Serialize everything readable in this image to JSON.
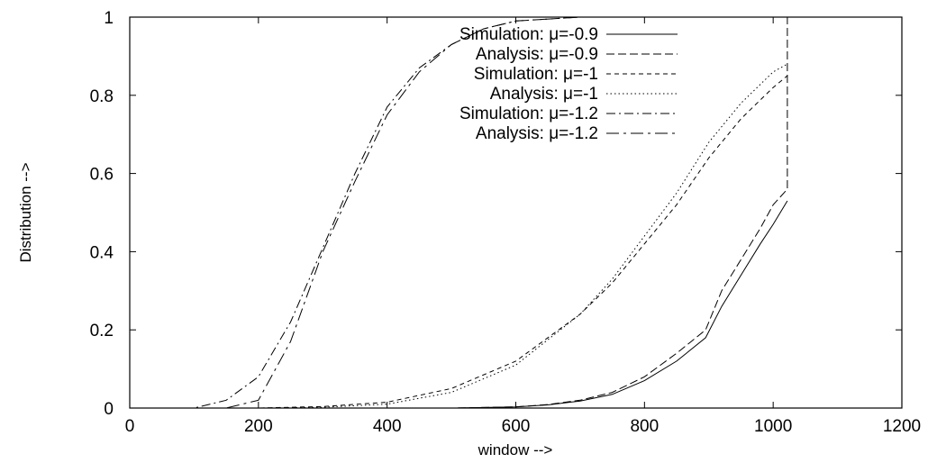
{
  "chart_data": {
    "type": "line",
    "xlabel": "window -->",
    "ylabel": "Distribution -->",
    "xlim": [
      0,
      1200
    ],
    "ylim": [
      0,
      1
    ],
    "xticks": [
      0,
      200,
      400,
      600,
      800,
      1000,
      1200
    ],
    "yticks": [
      0,
      0.2,
      0.4,
      0.6,
      0.8,
      1
    ],
    "grid": false,
    "legend_position": "top-center",
    "series": [
      {
        "name": "Simulation: μ=-0.9",
        "dash": "solid",
        "x": [
          0,
          500,
          600,
          650,
          700,
          750,
          800,
          850,
          895,
          920,
          950,
          980,
          1000,
          1022
        ],
        "y": [
          0,
          0,
          0.003,
          0.008,
          0.018,
          0.035,
          0.07,
          0.12,
          0.18,
          0.26,
          0.34,
          0.42,
          0.47,
          0.53
        ]
      },
      {
        "name": "Analysis: μ=-0.9",
        "dash": "long-dash",
        "x": [
          0,
          500,
          600,
          650,
          700,
          750,
          800,
          850,
          895,
          920,
          950,
          980,
          1000,
          1022,
          1022,
          1025
        ],
        "y": [
          0,
          0,
          0.003,
          0.009,
          0.02,
          0.04,
          0.08,
          0.14,
          0.2,
          0.3,
          0.38,
          0.46,
          0.52,
          0.56,
          1.0,
          1.0
        ]
      },
      {
        "name": "Simulation: μ=-1",
        "dash": "short-dash",
        "x": [
          0,
          200,
          300,
          400,
          500,
          600,
          700,
          750,
          800,
          850,
          900,
          950,
          1000,
          1022
        ],
        "y": [
          0,
          0,
          0.004,
          0.015,
          0.05,
          0.12,
          0.24,
          0.32,
          0.42,
          0.52,
          0.64,
          0.74,
          0.82,
          0.85
        ]
      },
      {
        "name": "Analysis: μ=-1",
        "dash": "dotted",
        "x": [
          0,
          200,
          300,
          400,
          500,
          600,
          700,
          750,
          800,
          850,
          900,
          950,
          1000,
          1022
        ],
        "y": [
          0,
          0,
          0.002,
          0.01,
          0.04,
          0.11,
          0.24,
          0.33,
          0.44,
          0.55,
          0.68,
          0.78,
          0.86,
          0.88
        ]
      },
      {
        "name": "Simulation: μ=-1.2",
        "dash": "dash-dot",
        "x": [
          0,
          100,
          150,
          200,
          250,
          300,
          350,
          400,
          450,
          500,
          550,
          600,
          700,
          800,
          900,
          1022
        ],
        "y": [
          0,
          0,
          0.02,
          0.08,
          0.22,
          0.41,
          0.6,
          0.77,
          0.87,
          0.93,
          0.97,
          0.99,
          1.0,
          1.0,
          1.0,
          1.0
        ]
      },
      {
        "name": "Analysis: μ=-1.2",
        "dash": "dash-dot-long",
        "x": [
          0,
          150,
          200,
          250,
          300,
          350,
          400,
          450,
          500,
          550,
          600,
          700,
          800,
          900,
          1022
        ],
        "y": [
          0,
          0,
          0.02,
          0.17,
          0.4,
          0.58,
          0.75,
          0.86,
          0.93,
          0.97,
          0.99,
          1.0,
          1.0,
          1.0,
          1.0
        ]
      }
    ]
  }
}
